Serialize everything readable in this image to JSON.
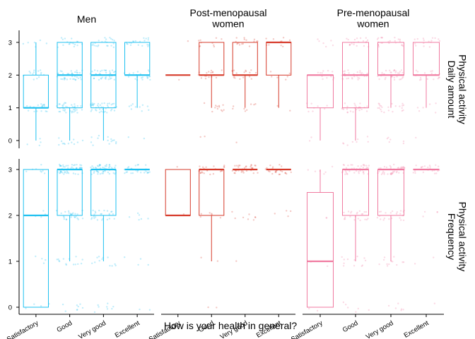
{
  "chart_data": {
    "type": "boxplot",
    "xlabel": "How is your health in general?",
    "categories": [
      "Satisfactory",
      "Good",
      "Very good",
      "Excellent"
    ],
    "y_ticks": [
      "0",
      "1",
      "2",
      "3"
    ],
    "ylim": [
      -0.2,
      3.2
    ],
    "grid": false,
    "columns": [
      {
        "key": "men",
        "label_lines": [
          "Men"
        ],
        "color": "#1ec0f0"
      },
      {
        "key": "post",
        "label_lines": [
          "Post-menopausal",
          "women"
        ],
        "color": "#d63a2a"
      },
      {
        "key": "pre",
        "label_lines": [
          "Pre-menopausal",
          "women"
        ],
        "color": "#f07aa0"
      }
    ],
    "rows": [
      {
        "key": "amount",
        "label_lines": [
          "Physical activity",
          "Daily amount"
        ]
      },
      {
        "key": "freq",
        "label_lines": [
          "Physical activity",
          "Frequency"
        ]
      }
    ],
    "boxes": {
      "amount": {
        "men": [
          {
            "lower": 0,
            "q1": 1,
            "median": 1,
            "q3": 2,
            "upper": 3
          },
          {
            "lower": 0,
            "q1": 1,
            "median": 2,
            "q3": 3,
            "upper": 3
          },
          {
            "lower": 0,
            "q1": 1,
            "median": 2,
            "q3": 3,
            "upper": 3
          },
          {
            "lower": 1,
            "q1": 2,
            "median": 2,
            "q3": 3,
            "upper": 3
          }
        ],
        "post": [
          {
            "lower": 2,
            "q1": 2,
            "median": 2,
            "q3": 2,
            "upper": 2
          },
          {
            "lower": 1,
            "q1": 2,
            "median": 2,
            "q3": 3,
            "upper": 3
          },
          {
            "lower": 1,
            "q1": 2,
            "median": 2,
            "q3": 3,
            "upper": 3
          },
          {
            "lower": 1,
            "q1": 2,
            "median": 3,
            "q3": 3,
            "upper": 3
          }
        ],
        "pre": [
          {
            "lower": 0,
            "q1": 1,
            "median": 2,
            "q3": 2,
            "upper": 2
          },
          {
            "lower": 0,
            "q1": 1,
            "median": 2,
            "q3": 3,
            "upper": 3
          },
          {
            "lower": 1,
            "q1": 2,
            "median": 2,
            "q3": 3,
            "upper": 3
          },
          {
            "lower": 1,
            "q1": 2,
            "median": 2,
            "q3": 3,
            "upper": 3
          }
        ]
      },
      "freq": {
        "men": [
          {
            "lower": 0,
            "q1": 0,
            "median": 2,
            "q3": 3,
            "upper": 3
          },
          {
            "lower": 1,
            "q1": 2,
            "median": 3,
            "q3": 3,
            "upper": 3
          },
          {
            "lower": 1,
            "q1": 2,
            "median": 3,
            "q3": 3,
            "upper": 3
          },
          {
            "lower": 3,
            "q1": 3,
            "median": 3,
            "q3": 3,
            "upper": 3
          }
        ],
        "post": [
          {
            "lower": 2,
            "q1": 2,
            "median": 2,
            "q3": 3,
            "upper": 3
          },
          {
            "lower": 1,
            "q1": 2,
            "median": 3,
            "q3": 3,
            "upper": 3
          },
          {
            "lower": 3,
            "q1": 3,
            "median": 3,
            "q3": 3,
            "upper": 3
          },
          {
            "lower": 3,
            "q1": 3,
            "median": 3,
            "q3": 3,
            "upper": 3
          }
        ],
        "pre": [
          {
            "lower": 0,
            "q1": 0,
            "median": 1,
            "q3": 2.5,
            "upper": 3
          },
          {
            "lower": 1,
            "q1": 2,
            "median": 3,
            "q3": 3,
            "upper": 3
          },
          {
            "lower": 1,
            "q1": 2,
            "median": 3,
            "q3": 3,
            "upper": 3
          },
          {
            "lower": 3,
            "q1": 3,
            "median": 3,
            "q3": 3,
            "upper": 3
          }
        ]
      }
    },
    "jitter_density": {
      "amount": {
        "men": [
          [
            4,
            20,
            14,
            6
          ],
          [
            12,
            40,
            40,
            18
          ],
          [
            14,
            42,
            46,
            22
          ],
          [
            2,
            10,
            22,
            20
          ]
        ],
        "post": [
          [
            0,
            0,
            1,
            1
          ],
          [
            2,
            12,
            18,
            10
          ],
          [
            1,
            8,
            18,
            16
          ],
          [
            0,
            2,
            6,
            10
          ]
        ],
        "pre": [
          [
            2,
            8,
            12,
            6
          ],
          [
            8,
            26,
            32,
            20
          ],
          [
            6,
            22,
            34,
            24
          ],
          [
            1,
            6,
            18,
            16
          ]
        ]
      },
      "freq": {
        "men": [
          [
            4,
            4,
            4,
            8
          ],
          [
            8,
            14,
            26,
            50
          ],
          [
            8,
            12,
            26,
            56
          ],
          [
            2,
            4,
            6,
            30
          ]
        ],
        "post": [
          [
            0,
            0,
            1,
            1
          ],
          [
            2,
            2,
            6,
            24
          ],
          [
            0,
            1,
            8,
            36
          ],
          [
            0,
            0,
            4,
            24
          ]
        ],
        "pre": [
          [
            2,
            2,
            2,
            6
          ],
          [
            6,
            12,
            22,
            44
          ],
          [
            6,
            12,
            22,
            48
          ],
          [
            1,
            2,
            4,
            22
          ]
        ]
      }
    }
  }
}
